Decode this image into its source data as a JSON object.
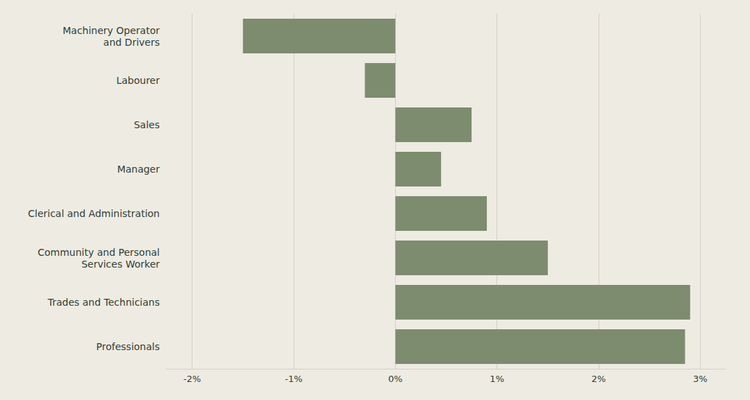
{
  "chart_data": {
    "type": "bar",
    "orientation": "horizontal",
    "categories": [
      "Professionals",
      "Trades and Technicians",
      "Community and Personal\nServices Worker",
      "Clerical and Administration",
      "Manager",
      "Sales",
      "Labourer",
      "Machinery Operator\nand Drivers"
    ],
    "values": [
      2.85,
      2.9,
      1.5,
      0.9,
      0.45,
      0.75,
      -0.3,
      -1.5
    ],
    "color": "#7d8c6e",
    "xlim": [
      -2.25,
      3.25
    ],
    "xticks": [
      {
        "value": -2,
        "label": "-2%"
      },
      {
        "value": -1,
        "label": "-1%"
      },
      {
        "value": 0,
        "label": "0%"
      },
      {
        "value": 1,
        "label": "1%"
      },
      {
        "value": 2,
        "label": "2%"
      },
      {
        "value": 3,
        "label": "3%"
      }
    ],
    "grid": true
  }
}
